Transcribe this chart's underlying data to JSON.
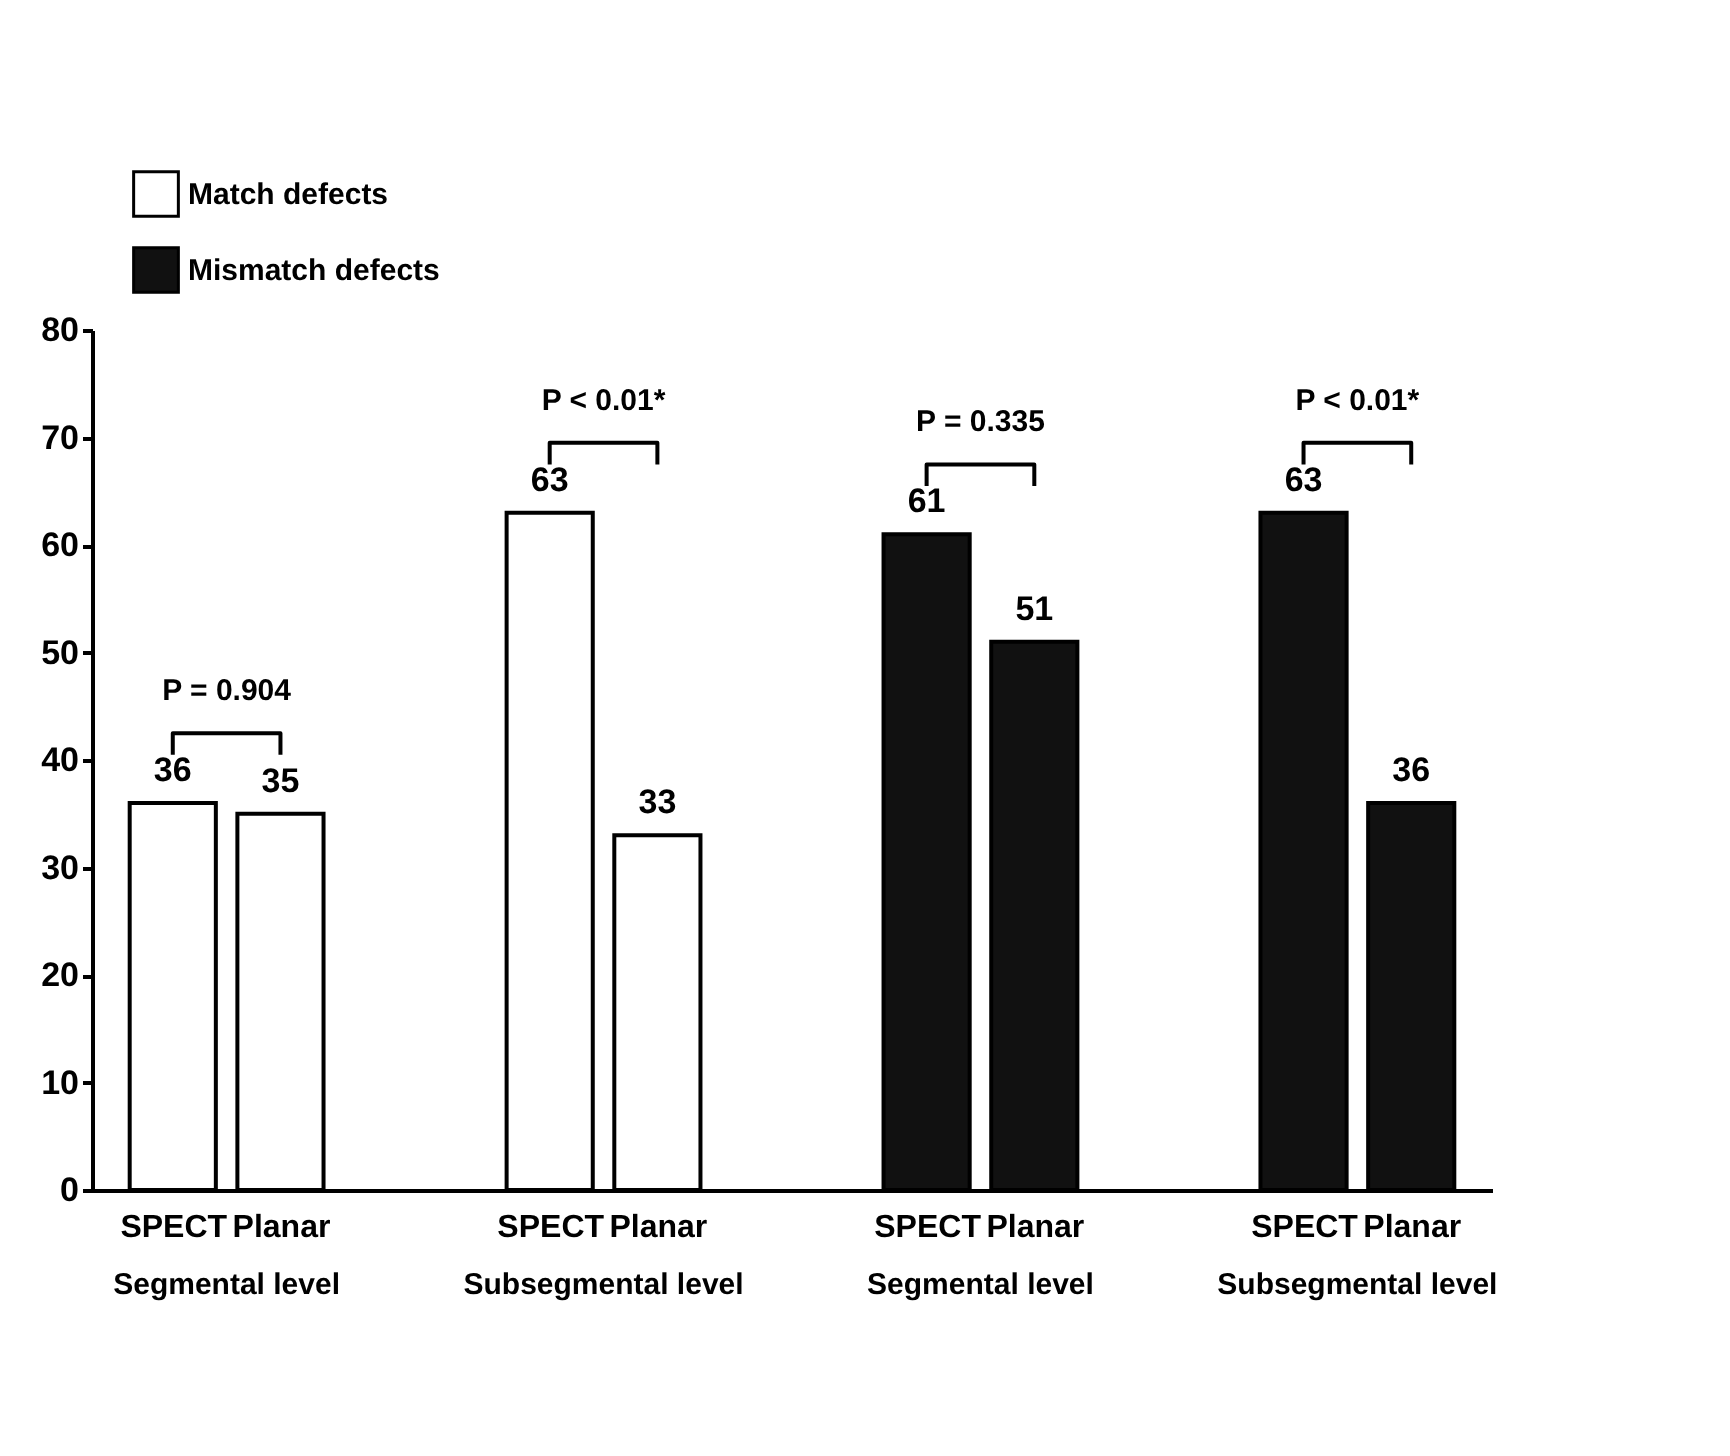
{
  "chart_data": {
    "type": "bar",
    "categories": [
      "SPECT",
      "Planar",
      "SPECT",
      "Planar",
      "SPECT",
      "Planar",
      "SPECT",
      "Planar"
    ],
    "series": [
      {
        "name": "Match defects",
        "color": "#ffffff",
        "values": [
          36,
          35,
          63,
          33,
          null,
          null,
          null,
          null
        ]
      },
      {
        "name": "Mismatch defects",
        "color": "#111111",
        "values": [
          null,
          null,
          null,
          null,
          61,
          51,
          63,
          36
        ]
      }
    ],
    "annotations": [
      "P = 0.904",
      "P < 0.01*",
      "P = 0.335",
      "P < 0.01*",
      "Segmental level",
      "Subsegmental level",
      "Segmental level",
      "Subsegmental level"
    ],
    "ylim": [
      0,
      80
    ],
    "yticks": [
      0,
      10,
      20,
      30,
      40,
      50,
      60,
      70,
      80
    ],
    "data_labels": true,
    "grid": false,
    "legend": "top left"
  }
}
